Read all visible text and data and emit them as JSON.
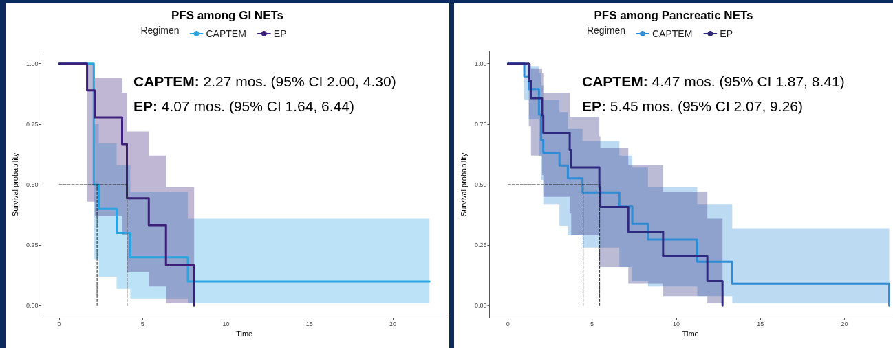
{
  "chart_data": [
    {
      "type": "step",
      "title": "PFS among GI NETs",
      "legend_title": "Regimen",
      "legend": "top",
      "xlabel": "Time",
      "ylabel": "Survival probability",
      "xlim": [
        -1.1,
        23.3
      ],
      "xticks": [
        0,
        5,
        10,
        15,
        20
      ],
      "ylim": [
        -0.05,
        1.05
      ],
      "yticks": [
        {
          "value": 0,
          "label": "0.00"
        },
        {
          "value": 0.25,
          "label": "0.25"
        },
        {
          "value": 0.5,
          "label": "0.50"
        },
        {
          "value": 0.75,
          "label": "0.75"
        },
        {
          "value": 1,
          "label": "1.00"
        }
      ],
      "annotations": [
        "CAPTEM: 2.27 mos. (95% CI 2.00, 4.30)",
        "EP: 4.07 mos. (95% CI 1.64, 6.44)"
      ],
      "series": [
        {
          "name": "CAPTEM",
          "color": "#2aa5e2",
          "x": [
            0,
            2.07,
            2.37,
            3.44,
            4.26,
            7.71,
            22.2
          ],
          "values": [
            1,
            0.5,
            0.4,
            0.3,
            0.2,
            0.1,
            0.1
          ],
          "lower": [
            1,
            0.19,
            0.12,
            0.07,
            0.03,
            0.01,
            0.01
          ],
          "upper": [
            1,
            0.75,
            0.67,
            0.58,
            0.47,
            0.36,
            0.36
          ]
        },
        {
          "name": "EP",
          "color": "#3b1f78",
          "x": [
            0,
            1.67,
            2.13,
            3.77,
            4.06,
            5.37,
            6.4,
            8.09
          ],
          "values": [
            1,
            0.889,
            0.778,
            0.667,
            0.444,
            0.333,
            0.167,
            0
          ],
          "lower": [
            1,
            0.43,
            0.37,
            0.29,
            0.14,
            0.08,
            0.01,
            0
          ],
          "upper": [
            1,
            1,
            0.94,
            0.88,
            0.72,
            0.62,
            0.49,
            0
          ]
        },
        {
          "type": "line",
          "line_style": "dashed",
          "color": "#222222",
          "x": [
            0,
            4.07
          ],
          "values": [
            0.5,
            0.5
          ]
        },
        {
          "type": "line",
          "line_style": "dashed",
          "color": "#222222",
          "x": [
            2.27,
            2.27
          ],
          "values": [
            0,
            0.5
          ]
        },
        {
          "type": "line",
          "line_style": "dashed",
          "color": "#222222",
          "x": [
            4.07,
            4.07
          ],
          "values": [
            0,
            0.5
          ]
        }
      ]
    },
    {
      "type": "step",
      "title": "PFS among Pancreatic NETs",
      "legend_title": "Regimen",
      "legend": "top",
      "xlabel": "Time",
      "ylabel": "Survival probability",
      "xlim": [
        -1.1,
        22.8
      ],
      "xticks": [
        0,
        5,
        10,
        15,
        20
      ],
      "ylim": [
        -0.05,
        1.05
      ],
      "yticks": [
        {
          "value": 0,
          "label": "0.00"
        },
        {
          "value": 0.25,
          "label": "0.25"
        },
        {
          "value": 0.5,
          "label": "0.50"
        },
        {
          "value": 0.75,
          "label": "0.75"
        },
        {
          "value": 1,
          "label": "1.00"
        }
      ],
      "annotations": [
        "CAPTEM: 4.47 mos. (95% CI 1.87, 8.41)",
        "EP: 5.45 mos. (95% CI 2.07, 9.26)"
      ],
      "series": [
        {
          "name": "CAPTEM",
          "color": "#2e8bd6",
          "x": [
            0,
            0.97,
            1.24,
            1.84,
            1.97,
            2.1,
            3.06,
            3.56,
            4.43,
            6.62,
            7.39,
            8.32,
            11.25,
            13.33,
            22.66
          ],
          "values": [
            1,
            0.947,
            0.895,
            0.789,
            0.684,
            0.632,
            0.579,
            0.526,
            0.468,
            0.41,
            0.338,
            0.273,
            0.182,
            0.091,
            0
          ],
          "lower": [
            1,
            0.85,
            0.77,
            0.62,
            0.52,
            0.42,
            0.33,
            0.29,
            0.24,
            0.16,
            0.1,
            0.08,
            0.04,
            0.01,
            0
          ],
          "upper": [
            1,
            1,
            0.99,
            0.96,
            0.91,
            0.85,
            0.8,
            0.73,
            0.68,
            0.62,
            0.57,
            0.49,
            0.42,
            0.32,
            0
          ]
        },
        {
          "name": "EP",
          "color": "#2f2a80",
          "x": [
            0,
            1.24,
            1.37,
            2.03,
            2.1,
            3.67,
            3.76,
            5.43,
            5.49,
            7.15,
            9.22,
            11.85,
            12.75
          ],
          "values": [
            1,
            0.929,
            0.857,
            0.786,
            0.714,
            0.643,
            0.571,
            0.49,
            0.408,
            0.306,
            0.204,
            0.102,
            0
          ],
          "lower": [
            1,
            0.74,
            0.62,
            0.54,
            0.45,
            0.38,
            0.29,
            0.16,
            0.16,
            0.09,
            0.04,
            0.01,
            0
          ],
          "upper": [
            1,
            1,
            0.98,
            0.96,
            0.88,
            0.78,
            0.78,
            0.7,
            0.65,
            0.58,
            0.47,
            0.36,
            0
          ]
        },
        {
          "type": "line",
          "line_style": "dashed",
          "color": "#222222",
          "x": [
            0,
            5.45
          ],
          "values": [
            0.5,
            0.5
          ]
        },
        {
          "type": "line",
          "line_style": "dashed",
          "color": "#222222",
          "x": [
            4.47,
            4.47
          ],
          "values": [
            0,
            0.5
          ]
        },
        {
          "type": "line",
          "line_style": "dashed",
          "color": "#222222",
          "x": [
            5.45,
            5.45
          ],
          "values": [
            0,
            0.5
          ]
        }
      ]
    }
  ]
}
